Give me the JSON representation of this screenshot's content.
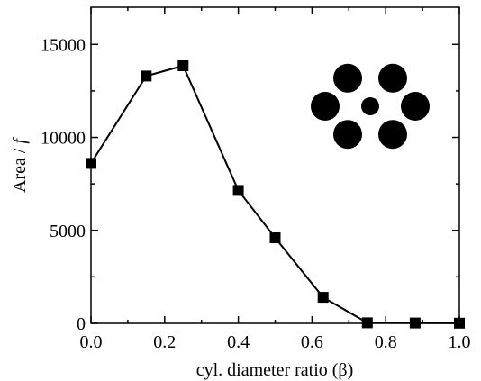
{
  "chart_data": {
    "type": "line",
    "xlabel": "cyl. diameter ratio (β)",
    "ylabel": "Area / f",
    "xlim": [
      0.0,
      1.0
    ],
    "ylim": [
      0,
      17000
    ],
    "x_ticks": [
      0.0,
      0.2,
      0.4,
      0.6,
      0.8,
      1.0
    ],
    "x_tick_labels": [
      "0.0",
      "0.2",
      "0.4",
      "0.6",
      "0.8",
      "1.0"
    ],
    "y_ticks": [
      0,
      5000,
      10000,
      15000
    ],
    "y_tick_labels": [
      "0",
      "5000",
      "10000",
      "15000"
    ],
    "grid": false,
    "marker": "square",
    "series": [
      {
        "x": [
          0.0,
          0.15,
          0.25,
          0.4,
          0.5,
          0.63,
          0.75,
          0.88,
          1.0
        ],
        "y": [
          8600,
          13300,
          13850,
          7150,
          4600,
          1400,
          30,
          20,
          10
        ]
      }
    ],
    "inset": {
      "description_shape": "hexagonal arrangement of six large black discs around one small central disc",
      "outer_count": 6
    }
  }
}
